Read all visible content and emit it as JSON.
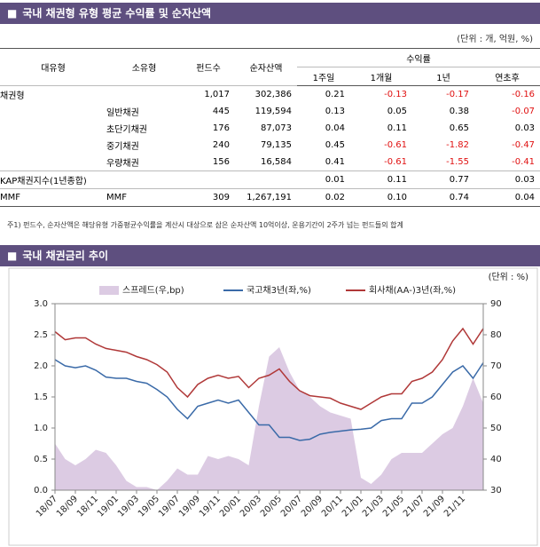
{
  "table_title": "국내 채권형 유형 평균 수익률 및 순자산액",
  "table": {
    "unit": "(단위 : 개, 억원, %)",
    "columns": [
      "대유형",
      "소유형",
      "펀드수",
      "순자산액"
    ],
    "group": "수익률",
    "sub_columns": [
      "1주일",
      "1개월",
      "1년",
      "연초후"
    ],
    "rows": [
      [
        "채권형",
        null,
        "1,017",
        "302,386",
        "0.21",
        "-0.13",
        "-0.17",
        "-0.16"
      ],
      [
        null,
        "일반채권",
        "445",
        "119,594",
        "0.13",
        "0.05",
        "0.38",
        "-0.07"
      ],
      [
        null,
        "초단기채권",
        "176",
        "87,073",
        "0.04",
        "0.11",
        "0.65",
        "0.03"
      ],
      [
        null,
        "중기채권",
        "240",
        "79,135",
        "0.45",
        "-0.61",
        "-1.82",
        "-0.47"
      ],
      [
        null,
        "우량채권",
        "156",
        "16,584",
        "0.41",
        "-0.61",
        "-1.55",
        "-0.41"
      ],
      [
        "KAP채권지수(1년종합)",
        null,
        null,
        null,
        "0.01",
        "0.11",
        "0.77",
        "0.03"
      ],
      [
        "MMF",
        "MMF",
        "309",
        "1,267,191",
        "0.02",
        "0.10",
        "0.74",
        "0.04"
      ]
    ]
  },
  "note": "주1) 펀드수, 순자산액은 해당유형 가중평균수익률을 계산시 대상으로 삼은 순자산액 10억이상, 운용기간이 2주가 넘는 펀드들의 합계",
  "chart_title": "국내 채권금리 추이",
  "chart_data": {
    "type": "line",
    "unit": "(단위 : %)",
    "categories": [
      "18/07",
      null,
      "18/09",
      null,
      "18/11",
      null,
      "19/01",
      null,
      "19/03",
      null,
      "19/05",
      null,
      "19/07",
      null,
      "19/09",
      null,
      "19/11",
      null,
      "20/01",
      null,
      "20/03",
      null,
      "20/05",
      null,
      "20/07",
      null,
      "20/09",
      null,
      "20/11",
      null,
      "21/01",
      null,
      "21/03",
      null,
      "21/05",
      null,
      "21/07",
      null,
      "21/09",
      null,
      "21/11",
      null,
      null
    ],
    "series": [
      {
        "name": "스프레드(우,bp)",
        "color": "#dccbe3",
        "kind": "area",
        "axis": "y2",
        "values": [
          45,
          40,
          38,
          40,
          43,
          42,
          38,
          33,
          31,
          31,
          30,
          33,
          37,
          35,
          35,
          41,
          40,
          41,
          40,
          38,
          57,
          73,
          76,
          68,
          62,
          60,
          57,
          55,
          54,
          53,
          34,
          32,
          35,
          40,
          42,
          42,
          42,
          45,
          48,
          50,
          57,
          66,
          58
        ]
      },
      {
        "name": "국고채3년(좌,%)",
        "color": "#3a6aa8",
        "values": [
          2.1,
          2.0,
          1.97,
          2.0,
          1.93,
          1.82,
          1.8,
          1.8,
          1.75,
          1.72,
          1.62,
          1.5,
          1.3,
          1.15,
          1.35,
          1.4,
          1.45,
          1.4,
          1.45,
          1.25,
          1.05,
          1.05,
          0.85,
          0.85,
          0.8,
          0.82,
          0.9,
          0.93,
          0.95,
          0.97,
          0.98,
          1.0,
          1.12,
          1.15,
          1.15,
          1.4,
          1.4,
          1.5,
          1.7,
          1.9,
          2.0,
          1.8,
          2.05
        ]
      },
      {
        "name": "회사채(AA-)3년(좌,%)",
        "color": "#b03838",
        "values": [
          2.55,
          2.42,
          2.45,
          2.45,
          2.35,
          2.28,
          2.25,
          2.22,
          2.15,
          2.1,
          2.02,
          1.9,
          1.65,
          1.5,
          1.7,
          1.8,
          1.85,
          1.8,
          1.83,
          1.65,
          1.8,
          1.85,
          1.95,
          1.75,
          1.6,
          1.52,
          1.5,
          1.48,
          1.4,
          1.35,
          1.3,
          1.4,
          1.5,
          1.55,
          1.55,
          1.75,
          1.8,
          1.9,
          2.1,
          2.4,
          2.6,
          2.35,
          2.6
        ]
      }
    ],
    "ylim": [
      0,
      3
    ],
    "yticks": [
      {
        "value": 0,
        "label": "0.0"
      },
      {
        "value": 0.5,
        "label": "0.5"
      },
      {
        "value": 1,
        "label": "1.0"
      },
      {
        "value": 1.5,
        "label": "1.5"
      },
      {
        "value": 2,
        "label": "2.0"
      },
      {
        "value": 2.5,
        "label": "2.5"
      },
      {
        "value": 3,
        "label": "3.0"
      }
    ],
    "y2lim": [
      30,
      90
    ],
    "y2ticks": [
      30,
      40,
      50,
      60,
      70,
      80,
      90
    ],
    "legend": "top"
  }
}
